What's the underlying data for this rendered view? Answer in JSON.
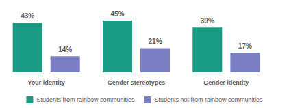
{
  "chart_data": {
    "type": "bar",
    "categories": [
      "Your identity",
      "Gender stereotypes",
      "Gender identity"
    ],
    "series": [
      {
        "name": "Students from rainbow communities",
        "color": "#1a9b83",
        "values": [
          43,
          45,
          39
        ],
        "value_labels": [
          "43%",
          "45%",
          "39%"
        ]
      },
      {
        "name": "Students not from rainbow communities",
        "color": "#7b7fc4",
        "values": [
          14,
          21,
          17
        ],
        "value_labels": [
          "14%",
          "21%",
          "17%"
        ]
      }
    ],
    "data_labels": true,
    "tick_labels": "x",
    "grid": false,
    "legend": "bottom"
  }
}
